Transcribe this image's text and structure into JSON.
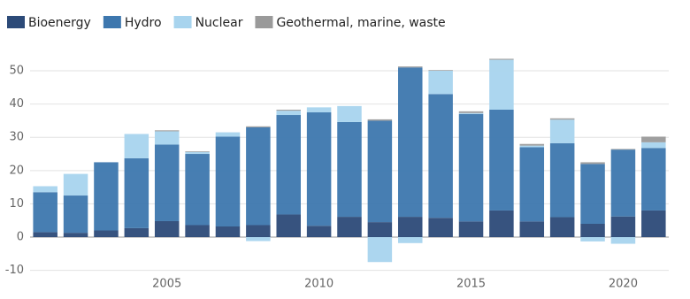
{
  "chart_data": {
    "type": "stacked-bar",
    "categories": [
      null,
      null,
      null,
      null,
      "2005",
      null,
      null,
      null,
      null,
      "2010",
      null,
      null,
      null,
      null,
      "2015",
      null,
      null,
      null,
      null,
      "2020",
      null
    ],
    "series": [
      {
        "name": "Bioenergy",
        "color": "#2c4a78",
        "values": [
          1.5,
          1.3,
          2,
          2.7,
          4.8,
          3.6,
          3.2,
          3.6,
          6.8,
          3.4,
          6.1,
          4.5,
          6.1,
          5.8,
          4.7,
          8,
          4.7,
          6,
          4,
          6.2,
          8
        ]
      },
      {
        "name": "Hydro",
        "color": "#3d77ae",
        "values": [
          12,
          11.2,
          20.5,
          21,
          23,
          21.4,
          27,
          29.4,
          29.9,
          34.1,
          28.5,
          30.5,
          44.9,
          37.2,
          32.3,
          30.3,
          22.3,
          22.2,
          18,
          20.1,
          18.8
        ]
      },
      {
        "name": "Nuclear",
        "color": "#a8d4ee",
        "values": [
          1.8,
          6.5,
          0,
          7.3,
          4,
          0.6,
          1.3,
          -1.2,
          1.3,
          1.5,
          4.8,
          -7.5,
          -1.8,
          7,
          0.3,
          15,
          0.5,
          7.1,
          -1.3,
          -2,
          1.7
        ]
      },
      {
        "name": "Geothermal, marine, waste",
        "color": "#9a9a9a",
        "values": [
          0,
          0,
          0,
          0,
          0.3,
          0.2,
          0,
          0.3,
          0.3,
          0,
          0,
          0.4,
          0.3,
          0.2,
          0.5,
          0.3,
          0.5,
          0.4,
          0.5,
          0.2,
          1.7
        ]
      }
    ],
    "ylim": [
      -11,
      55
    ],
    "yticks": [
      -10,
      0,
      10,
      20,
      30,
      40,
      50
    ],
    "grid": true
  }
}
